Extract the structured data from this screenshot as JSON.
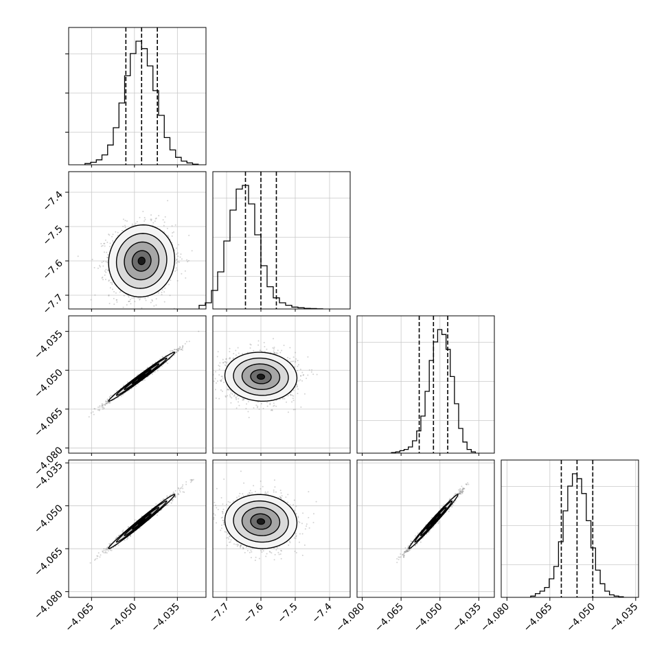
{
  "chart_data": {
    "type": "corner",
    "n_params": 4,
    "parameters": [
      {
        "mean": -4.0475,
        "sigma": 0.0055,
        "range": [
          -4.073,
          -4.025
        ],
        "ticks": [
          -4.065,
          -4.05,
          -4.035
        ],
        "tick_labels": [
          "−4.065",
          "−4.050",
          "−4.035"
        ],
        "quantiles": [
          -4.053,
          -4.0475,
          -4.042
        ],
        "hist": [
          1,
          2,
          4,
          8,
          16,
          30,
          50,
          72,
          90,
          100,
          94,
          80,
          60,
          40,
          22,
          12,
          6,
          3,
          1.5,
          0.5
        ]
      },
      {
        "mean": -7.6,
        "sigma": 0.05,
        "range": [
          -7.74,
          -7.34
        ],
        "ticks": [
          -7.7,
          -7.6,
          -7.5,
          -7.4
        ],
        "tick_labels": [
          "−7.7",
          "−7.6",
          "−7.5",
          "−7.4"
        ],
        "quantiles": [
          -7.645,
          -7.6,
          -7.555
        ],
        "hist": [
          3,
          5,
          15,
          30,
          55,
          80,
          97,
          100,
          85,
          60,
          35,
          18,
          9,
          5,
          3,
          1.5,
          1,
          0.5,
          0.3,
          0.1
        ]
      },
      {
        "mean": -4.0525,
        "sigma": 0.0045,
        "range": [
          -4.082,
          -4.029
        ],
        "ticks": [
          -4.08,
          -4.065,
          -4.05,
          -4.035
        ],
        "tick_labels": [
          "−4.080",
          "−4.065",
          "−4.050",
          "−4.035"
        ],
        "quantiles": [
          -4.058,
          -4.0525,
          -4.047
        ],
        "hist": [
          0.5,
          1,
          2,
          3,
          5,
          10,
          18,
          30,
          50,
          75,
          90,
          100,
          96,
          84,
          62,
          40,
          20,
          9,
          3,
          1
        ]
      },
      {
        "mean": -4.0555,
        "sigma": 0.0045,
        "range": [
          -4.082,
          -4.034
        ],
        "ticks": [
          -4.08,
          -4.065,
          -4.05,
          -4.035
        ],
        "tick_labels": [
          "−4.080",
          "−4.065",
          "−4.050",
          "−4.035"
        ],
        "quantiles": [
          -4.061,
          -4.0555,
          -4.05
        ],
        "hist": [
          1,
          3,
          5,
          8,
          15,
          25,
          45,
          70,
          90,
          100,
          96,
          84,
          62,
          40,
          22,
          11,
          5,
          2,
          1,
          0.5
        ]
      }
    ],
    "correlations": {
      "1-0": 0.05,
      "2-0": 0.99,
      "2-1": -0.05,
      "3-0": 0.99,
      "3-1": -0.05,
      "3-2": 0.99
    },
    "scatter_color": "#7f7f7f",
    "line_color": "#000000",
    "grid": true,
    "quantile_lines": "dashed",
    "contours": "filled-grayscale"
  }
}
